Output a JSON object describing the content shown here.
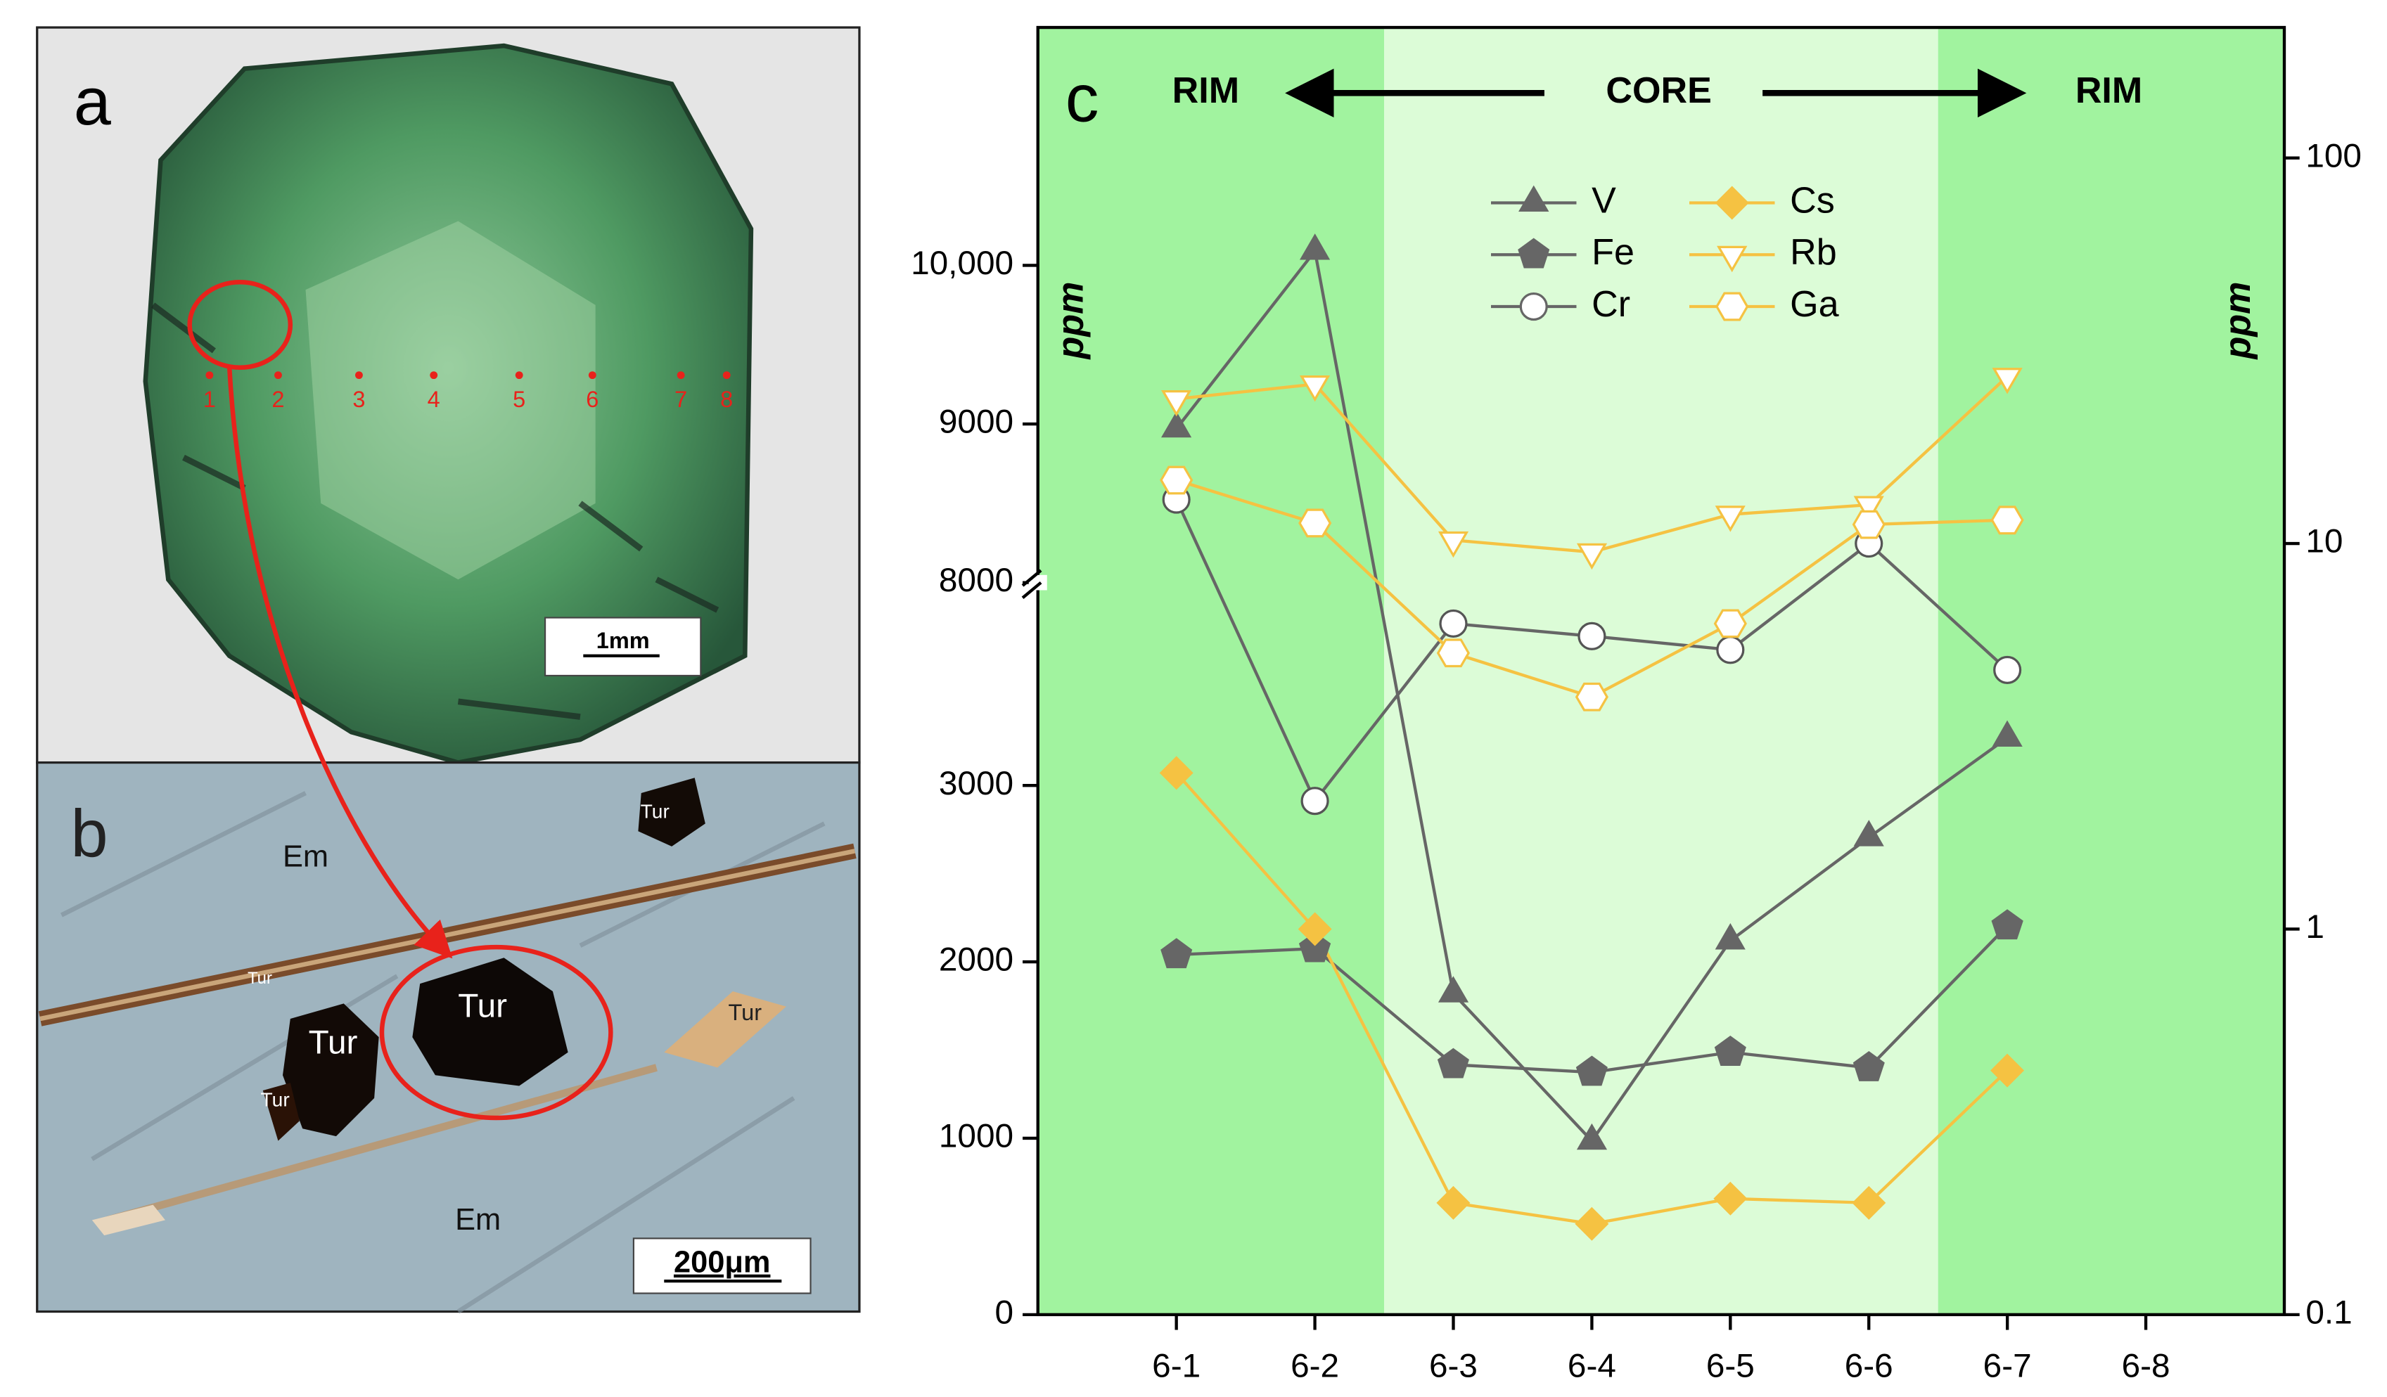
{
  "photo_a": {
    "label": "a",
    "scale_bar": "1mm",
    "points": [
      "1",
      "2",
      "3",
      "4",
      "5",
      "6",
      "7",
      "8"
    ]
  },
  "photo_b": {
    "label": "b",
    "scale_bar": "200μm",
    "labels": [
      "Tur",
      "Em",
      "Tur",
      "Tur",
      "Tur",
      "Tur",
      "Tur",
      "Em"
    ]
  },
  "chart_data": {
    "type": "line",
    "label": "c",
    "annotations": [
      "RIM",
      "CORE",
      "RIM"
    ],
    "ylabel": "ppm",
    "y2label": "ppm",
    "categories": [
      "6-1",
      "6-2",
      "6-3",
      "6-4",
      "6-5",
      "6-6",
      "6-7",
      "6-8"
    ],
    "ylim": [
      0,
      11500
    ],
    "ybreak": [
      4150,
      8000
    ],
    "yticks": [
      0,
      1000,
      2000,
      3000,
      8000,
      9000,
      {
        "value": 10000,
        "label": "10,000"
      }
    ],
    "y2lim": [
      0.1,
      218
    ],
    "y2scale": "log",
    "y2ticks": [
      0.1,
      1,
      10,
      100
    ],
    "legend": "top",
    "series": [
      {
        "name": "V",
        "color": "#666666",
        "marker": "triangle",
        "filled": true,
        "axis": "y",
        "values": [
          8970,
          10090,
          1820,
          985,
          2120,
          2705,
          3270,
          null
        ]
      },
      {
        "name": "Fe",
        "color": "#666666",
        "marker": "pentagon",
        "filled": true,
        "axis": "y",
        "values": [
          2040,
          2075,
          1417,
          1374,
          1487,
          1400,
          2204,
          null
        ]
      },
      {
        "name": "Cr",
        "color": "#666666",
        "marker": "circle",
        "filled": false,
        "axis": "y2",
        "values": [
          13,
          2.15,
          6.2,
          5.75,
          5.3,
          10,
          4.7,
          null
        ]
      },
      {
        "name": "Cs",
        "color": "#f5c242",
        "marker": "diamond",
        "filled": true,
        "axis": "y2",
        "values": [
          2.54,
          1.0,
          0.195,
          0.172,
          0.2,
          0.195,
          0.43,
          null
        ]
      },
      {
        "name": "Rb",
        "color": "#f5c242",
        "marker": "triangle-down",
        "filled": false,
        "axis": "y2",
        "values": [
          23.7,
          25.9,
          10.2,
          9.5,
          11.9,
          12.6,
          27.1,
          null
        ]
      },
      {
        "name": "Ga",
        "color": "#f5c242",
        "marker": "hexagon",
        "filled": false,
        "axis": "y2",
        "values": [
          14.6,
          11.3,
          5.2,
          4.0,
          6.2,
          11.2,
          11.5,
          null
        ]
      }
    ]
  }
}
